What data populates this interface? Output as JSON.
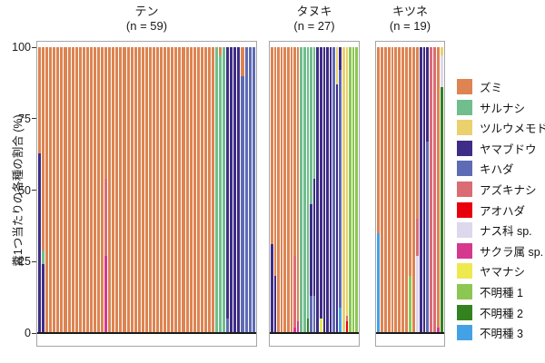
{
  "chart_data": {
    "type": "bar",
    "stacked": true,
    "title": "",
    "ylabel": "糞1つ当たりの各種の割合 (%)",
    "ylim": [
      0,
      100
    ],
    "yticks": [
      0,
      25,
      50,
      75,
      100
    ],
    "grid": false,
    "legend_position": "right",
    "species": [
      {
        "name": "ズミ",
        "color": "#DD8452"
      },
      {
        "name": "サルナシ",
        "color": "#70BD8D"
      },
      {
        "name": "ツルウメモドキ",
        "color": "#EBD06E"
      },
      {
        "name": "ヤマブドウ",
        "color": "#3E2C87"
      },
      {
        "name": "キハダ",
        "color": "#5E6BB5"
      },
      {
        "name": "アズキナシ",
        "color": "#DA6C74"
      },
      {
        "name": "アオハダ",
        "color": "#E8000D"
      },
      {
        "name": "ナス科 sp.",
        "color": "#DDD8EC"
      },
      {
        "name": "サクラ属 sp.",
        "color": "#D5388D"
      },
      {
        "name": "ヤマナシ",
        "color": "#EDE94F"
      },
      {
        "name": "不明種 1",
        "color": "#8CC653"
      },
      {
        "name": "不明種 2",
        "color": "#33821F"
      },
      {
        "name": "不明種 3",
        "color": "#43A2E6"
      }
    ],
    "panels": [
      {
        "title": "テン",
        "subtitle": "(n = 59)",
        "n": 59,
        "bars": [
          [
            [
              0,
              37
            ],
            [
              3,
              63
            ]
          ],
          [
            [
              0,
              71
            ],
            [
              1,
              5
            ],
            [
              3,
              24
            ]
          ],
          [
            [
              0,
              100
            ]
          ],
          [
            [
              0,
              100
            ]
          ],
          [
            [
              0,
              100
            ]
          ],
          [
            [
              0,
              100
            ]
          ],
          [
            [
              0,
              100
            ]
          ],
          [
            [
              0,
              100
            ]
          ],
          [
            [
              0,
              100
            ]
          ],
          [
            [
              0,
              100
            ]
          ],
          [
            [
              0,
              100
            ]
          ],
          [
            [
              0,
              100
            ]
          ],
          [
            [
              0,
              100
            ]
          ],
          [
            [
              0,
              100
            ]
          ],
          [
            [
              0,
              100
            ]
          ],
          [
            [
              0,
              100
            ]
          ],
          [
            [
              0,
              100
            ]
          ],
          [
            [
              0,
              100
            ]
          ],
          [
            [
              0,
              46
            ],
            [
              5,
              27
            ],
            [
              8,
              27
            ]
          ],
          [
            [
              0,
              100
            ]
          ],
          [
            [
              0,
              100
            ]
          ],
          [
            [
              0,
              100
            ]
          ],
          [
            [
              0,
              100
            ]
          ],
          [
            [
              0,
              100
            ]
          ],
          [
            [
              0,
              100
            ]
          ],
          [
            [
              0,
              100
            ]
          ],
          [
            [
              0,
              100
            ]
          ],
          [
            [
              0,
              100
            ]
          ],
          [
            [
              0,
              100
            ]
          ],
          [
            [
              0,
              100
            ]
          ],
          [
            [
              0,
              100
            ]
          ],
          [
            [
              0,
              100
            ]
          ],
          [
            [
              0,
              100
            ]
          ],
          [
            [
              0,
              100
            ]
          ],
          [
            [
              0,
              100
            ]
          ],
          [
            [
              0,
              100
            ]
          ],
          [
            [
              0,
              100
            ]
          ],
          [
            [
              0,
              100
            ]
          ],
          [
            [
              0,
              100
            ]
          ],
          [
            [
              0,
              100
            ]
          ],
          [
            [
              0,
              100
            ]
          ],
          [
            [
              0,
              100
            ]
          ],
          [
            [
              0,
              100
            ]
          ],
          [
            [
              0,
              100
            ]
          ],
          [
            [
              0,
              100
            ]
          ],
          [
            [
              0,
              100
            ]
          ],
          [
            [
              0,
              100
            ]
          ],
          [
            [
              0,
              100
            ]
          ],
          [
            [
              1,
              100
            ]
          ],
          [
            [
              0,
              3
            ],
            [
              1,
              97
            ]
          ],
          [
            [
              1,
              100
            ]
          ],
          [
            [
              3,
              95
            ],
            [
              4,
              5
            ]
          ],
          [
            [
              3,
              100
            ]
          ],
          [
            [
              3,
              100
            ]
          ],
          [
            [
              3,
              100
            ]
          ],
          [
            [
              0,
              10
            ],
            [
              4,
              90
            ]
          ],
          [
            [
              4,
              100
            ]
          ],
          [
            [
              4,
              100
            ]
          ],
          [
            [
              4,
              100
            ]
          ]
        ]
      },
      {
        "title": "タヌキ",
        "subtitle": "(n = 27)",
        "n": 27,
        "bars": [
          [
            [
              0,
              69
            ],
            [
              3,
              31
            ]
          ],
          [
            [
              0,
              80
            ],
            [
              3,
              20
            ]
          ],
          [
            [
              0,
              100
            ]
          ],
          [
            [
              0,
              100
            ]
          ],
          [
            [
              0,
              100
            ]
          ],
          [
            [
              0,
              100
            ]
          ],
          [
            [
              0,
              100
            ]
          ],
          [
            [
              0,
              73
            ],
            [
              5,
              25
            ],
            [
              8,
              2
            ]
          ],
          [
            [
              0,
              96
            ],
            [
              8,
              4
            ]
          ],
          [
            [
              1,
              100
            ]
          ],
          [
            [
              1,
              100
            ]
          ],
          [
            [
              1,
              95
            ],
            [
              11,
              5
            ]
          ],
          [
            [
              1,
              55
            ],
            [
              3,
              32
            ],
            [
              4,
              13
            ]
          ],
          [
            [
              1,
              46
            ],
            [
              3,
              41
            ],
            [
              4,
              13
            ]
          ],
          [
            [
              3,
              100
            ]
          ],
          [
            [
              3,
              95
            ],
            [
              9,
              5
            ]
          ],
          [
            [
              3,
              100
            ]
          ],
          [
            [
              3,
              100
            ]
          ],
          [
            [
              3,
              100
            ]
          ],
          [
            [
              4,
              100
            ]
          ],
          [
            [
              2,
              13
            ],
            [
              3,
              87
            ]
          ],
          [
            [
              3,
              8
            ],
            [
              4,
              83
            ],
            [
              12,
              9
            ]
          ],
          [
            [
              2,
              100
            ]
          ],
          [
            [
              2,
              94
            ],
            [
              5,
              2
            ],
            [
              6,
              4
            ]
          ],
          [
            [
              10,
              100
            ]
          ],
          [
            [
              10,
              100
            ]
          ],
          [
            [
              10,
              100
            ]
          ]
        ]
      },
      {
        "title": "キツネ",
        "subtitle": "(n = 19)",
        "n": 19,
        "bars": [
          [
            [
              0,
              65
            ],
            [
              12,
              35
            ]
          ],
          [
            [
              0,
              100
            ]
          ],
          [
            [
              0,
              100
            ]
          ],
          [
            [
              0,
              100
            ]
          ],
          [
            [
              0,
              100
            ]
          ],
          [
            [
              0,
              100
            ]
          ],
          [
            [
              0,
              100
            ]
          ],
          [
            [
              0,
              100
            ]
          ],
          [
            [
              0,
              100
            ]
          ],
          [
            [
              0,
              80
            ],
            [
              10,
              20
            ]
          ],
          [
            [
              0,
              100
            ]
          ],
          [
            [
              0,
              60
            ],
            [
              5,
              13
            ],
            [
              7,
              27
            ]
          ],
          [
            [
              3,
              100
            ]
          ],
          [
            [
              3,
              100
            ]
          ],
          [
            [
              3,
              33
            ],
            [
              4,
              67
            ]
          ],
          [
            [
              5,
              100
            ]
          ],
          [
            [
              5,
              100
            ]
          ],
          [
            [
              0,
              98
            ],
            [
              8,
              2
            ]
          ],
          [
            [
              2,
              3
            ],
            [
              7,
              11
            ],
            [
              11,
              86
            ]
          ]
        ]
      }
    ]
  }
}
